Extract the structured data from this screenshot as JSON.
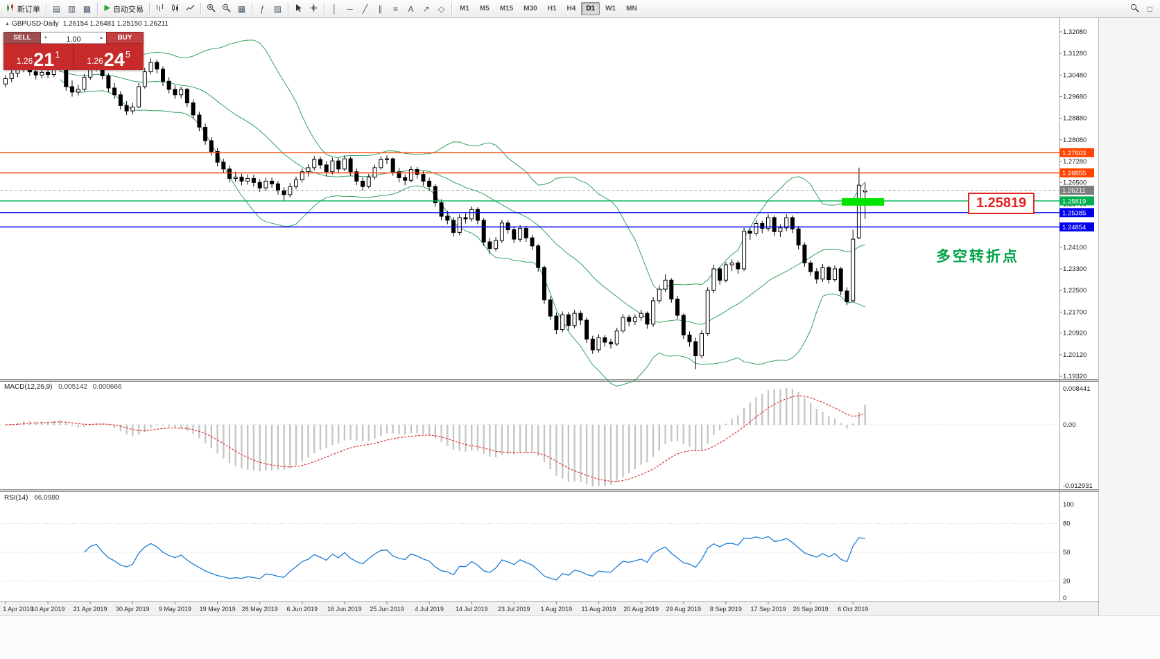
{
  "toolbar": {
    "new_order_label": "新订单",
    "autotrading_label": "自动交易",
    "left_tools": [
      {
        "name": "market-watch-icon",
        "glyph": "▤"
      },
      {
        "name": "navigator-icon",
        "glyph": "▥"
      },
      {
        "name": "terminal-icon",
        "glyph": "▩"
      }
    ],
    "tools": [
      {
        "type": "svg",
        "name": "bar-chart-icon",
        "icon": "bars"
      },
      {
        "type": "svg",
        "name": "candlestick-chart-icon",
        "icon": "candle"
      },
      {
        "type": "svg",
        "name": "line-chart-icon",
        "icon": "linechart"
      },
      {
        "type": "sep"
      },
      {
        "type": "svg",
        "name": "zoom-in-icon",
        "icon": "zoomin"
      },
      {
        "type": "svg",
        "name": "zoom-out-icon",
        "icon": "zoomout"
      },
      {
        "type": "glyph",
        "name": "tile-windows-icon",
        "glyph": "▦"
      },
      {
        "type": "sep"
      },
      {
        "type": "glyph",
        "name": "indicators-icon",
        "glyph": "ƒ"
      },
      {
        "type": "glyph",
        "name": "templates-icon",
        "glyph": "▨"
      },
      {
        "type": "sep"
      },
      {
        "type": "svg",
        "name": "cursor-icon",
        "icon": "cursor"
      },
      {
        "type": "svg",
        "name": "crosshair-icon",
        "icon": "crosshair"
      },
      {
        "type": "sep"
      },
      {
        "type": "glyph",
        "name": "vertical-line-icon",
        "glyph": "│"
      },
      {
        "type": "glyph",
        "name": "horizontal-line-icon",
        "glyph": "─"
      },
      {
        "type": "glyph",
        "name": "trendline-icon",
        "glyph": "╱"
      },
      {
        "type": "glyph",
        "name": "equidistant-channel-icon",
        "glyph": "∥"
      },
      {
        "type": "glyph",
        "name": "fibonacci-icon",
        "glyph": "≡"
      },
      {
        "type": "glyph",
        "name": "text-tool-icon",
        "glyph": "A"
      },
      {
        "type": "glyph",
        "name": "arrows-tool-icon",
        "glyph": "↗"
      },
      {
        "type": "glyph",
        "name": "shapes-tool-icon",
        "glyph": "◇"
      }
    ],
    "timeframes": {
      "items": [
        "M1",
        "M5",
        "M15",
        "M30",
        "H1",
        "H4",
        "D1",
        "W1",
        "MN"
      ],
      "active": "D1"
    },
    "right_tools": [
      {
        "type": "svg",
        "name": "search-icon",
        "icon": "search"
      },
      {
        "type": "glyph",
        "name": "window-list-icon",
        "glyph": "□"
      }
    ]
  },
  "trade_panel": {
    "sell_label": "SELL",
    "buy_label": "BUY",
    "volume": "1.00",
    "sell_price": {
      "base": "1.26",
      "big": "21",
      "sup": "1"
    },
    "buy_price": {
      "base": "1.26",
      "big": "24",
      "sup": "5"
    }
  },
  "chart_header": {
    "collapse_glyph": "▲",
    "symbol": "GBPUSD-Daily",
    "ohlc": "1.26154 1.26481 1.25150 1.26211"
  },
  "indicators": {
    "macd": {
      "label": "MACD(12,26,9)",
      "main_value": "0.005142",
      "signal_value": "0.000666",
      "scale": {
        "top": "0.008441",
        "zero": "0.00",
        "bottom": "-0.012931"
      }
    },
    "rsi": {
      "label": "RSI(14)",
      "value": "66.0980",
      "scale": [
        {
          "v": 100,
          "t": "100"
        },
        {
          "v": 80,
          "t": "80"
        },
        {
          "v": 50,
          "t": "50"
        },
        {
          "v": 20,
          "t": "20"
        },
        {
          "v": 0,
          "t": "0"
        }
      ],
      "level_lines": [
        20,
        50,
        80
      ]
    }
  },
  "chart_data": {
    "type": "candlestick",
    "symbol": "GBPUSD",
    "period": "Daily",
    "ohlc_current": {
      "open": 1.26154,
      "high": 1.26481,
      "low": 1.2515,
      "close": 1.26211
    },
    "price_scale": [
      {
        "v": 1.3208,
        "t": "1.32080"
      },
      {
        "v": 1.3128,
        "t": "1.31280"
      },
      {
        "v": 1.3048,
        "t": "1.30480"
      },
      {
        "v": 1.2968,
        "t": "1.29680"
      },
      {
        "v": 1.2888,
        "t": "1.28880"
      },
      {
        "v": 1.2808,
        "t": "1.28080"
      },
      {
        "v": 1.2728,
        "t": "1.27280"
      },
      {
        "v": 1.265,
        "t": "1.26500"
      },
      {
        "v": 1.257,
        "t": "1.25700"
      },
      {
        "v": 1.249,
        "t": "1.24900"
      },
      {
        "v": 1.241,
        "t": "1.24100"
      },
      {
        "v": 1.233,
        "t": "1.23300"
      },
      {
        "v": 1.225,
        "t": "1.22500"
      },
      {
        "v": 1.217,
        "t": "1.21700"
      },
      {
        "v": 1.2092,
        "t": "1.20920"
      },
      {
        "v": 1.2012,
        "t": "1.20120"
      },
      {
        "v": 1.1932,
        "t": "1.19320"
      }
    ],
    "x_axis": {
      "labels": [
        "1 Apr 2019",
        "10 Apr 2019",
        "21 Apr 2019",
        "30 Apr 2019",
        "9 May 2019",
        "19 May 2019",
        "28 May 2019",
        "6 Jun 2019",
        "16 Jun 2019",
        "25 Jun 2019",
        "4 Jul 2019",
        "14 Jul 2019",
        "23 Jul 2019",
        "1 Aug 2019",
        "11 Aug 2019",
        "20 Aug 2019",
        "29 Aug 2019",
        "8 Sep 2019",
        "17 Sep 2019",
        "26 Sep 2019",
        "6 Oct 2019"
      ],
      "candles_per_label": 7
    },
    "hlines": [
      {
        "price": 1.27603,
        "label": "1.27603",
        "color": "#ff4500"
      },
      {
        "price": 1.26855,
        "label": "1.26855",
        "color": "#ff4500"
      },
      {
        "price": 1.25819,
        "label": "1.25819",
        "color": "#00b050"
      },
      {
        "price": 1.25385,
        "label": "1.25385",
        "color": "#0000ee"
      },
      {
        "price": 1.24854,
        "label": "1.24854",
        "color": "#0000ee"
      }
    ],
    "current_price": {
      "value": 1.26211,
      "label": "1.26211",
      "color": "#7d7d7d"
    },
    "bollinger": {
      "period": 20,
      "deviation": 2,
      "color": "#33a05f"
    },
    "macd_settings": {
      "fast": 12,
      "slow": 26,
      "signal": 9
    },
    "rsi_settings": {
      "period": 14
    },
    "annotations": {
      "highlight_rect": {
        "i0": 138.5,
        "i1": 144.8,
        "p0": 1.2564,
        "p1": 1.2592,
        "color": "#00e400"
      },
      "callout": {
        "text": "1.25819",
        "color": "#e32222"
      },
      "note": {
        "text": "多空转折点",
        "color": "#00a146"
      }
    },
    "candles": [
      [
        1.3015,
        1.3048,
        1.3002,
        1.3035
      ],
      [
        1.3035,
        1.3068,
        1.3022,
        1.3055
      ],
      [
        1.3055,
        1.3082,
        1.304,
        1.307
      ],
      [
        1.307,
        1.3095,
        1.3058,
        1.3082
      ],
      [
        1.3082,
        1.309,
        1.3045,
        1.306
      ],
      [
        1.306,
        1.3072,
        1.3032,
        1.3048
      ],
      [
        1.3048,
        1.307,
        1.3035,
        1.3058
      ],
      [
        1.3058,
        1.3072,
        1.3038,
        1.305
      ],
      [
        1.305,
        1.3098,
        1.304,
        1.3085
      ],
      [
        1.3085,
        1.3102,
        1.306,
        1.3075
      ],
      [
        1.3075,
        1.308,
        1.299,
        1.3005
      ],
      [
        1.3005,
        1.3028,
        1.2968,
        1.2985
      ],
      [
        1.2985,
        1.3012,
        1.2972,
        1.2995
      ],
      [
        1.2995,
        1.3052,
        1.2988,
        1.304
      ],
      [
        1.304,
        1.3088,
        1.303,
        1.3075
      ],
      [
        1.3075,
        1.3102,
        1.3062,
        1.309
      ],
      [
        1.309,
        1.3098,
        1.3032,
        1.3045
      ],
      [
        1.3045,
        1.3055,
        1.2985,
        1.3
      ],
      [
        1.3,
        1.3018,
        1.296,
        1.2975
      ],
      [
        1.2975,
        1.2988,
        1.292,
        1.2935
      ],
      [
        1.2935,
        1.2952,
        1.29,
        1.2915
      ],
      [
        1.2915,
        1.2945,
        1.2902,
        1.293
      ],
      [
        1.293,
        1.3018,
        1.2925,
        1.3005
      ],
      [
        1.3005,
        1.3075,
        1.2998,
        1.306
      ],
      [
        1.306,
        1.311,
        1.305,
        1.3095
      ],
      [
        1.3095,
        1.3105,
        1.3055,
        1.307
      ],
      [
        1.307,
        1.308,
        1.3008,
        1.3025
      ],
      [
        1.3025,
        1.304,
        1.298,
        1.2995
      ],
      [
        1.2995,
        1.301,
        1.296,
        1.2975
      ],
      [
        1.2975,
        1.3005,
        1.2962,
        1.2995
      ],
      [
        1.2995,
        1.3,
        1.293,
        1.2945
      ],
      [
        1.2945,
        1.2958,
        1.2885,
        1.29
      ],
      [
        1.29,
        1.2912,
        1.284,
        1.2855
      ],
      [
        1.2855,
        1.2868,
        1.279,
        1.2805
      ],
      [
        1.2805,
        1.2818,
        1.275,
        1.2765
      ],
      [
        1.2765,
        1.2778,
        1.271,
        1.2725
      ],
      [
        1.2725,
        1.2738,
        1.2685,
        1.27
      ],
      [
        1.27,
        1.2712,
        1.265,
        1.2665
      ],
      [
        1.2665,
        1.269,
        1.2652,
        1.267
      ],
      [
        1.267,
        1.2682,
        1.264,
        1.2655
      ],
      [
        1.2655,
        1.268,
        1.2642,
        1.2665
      ],
      [
        1.2665,
        1.2678,
        1.2635,
        1.265
      ],
      [
        1.265,
        1.2662,
        1.2615,
        1.263
      ],
      [
        1.263,
        1.2668,
        1.2618,
        1.2655
      ],
      [
        1.2655,
        1.2668,
        1.263,
        1.2645
      ],
      [
        1.2645,
        1.2655,
        1.2605,
        1.262
      ],
      [
        1.262,
        1.2632,
        1.258,
        1.2605
      ],
      [
        1.2605,
        1.2648,
        1.2595,
        1.2635
      ],
      [
        1.2635,
        1.2672,
        1.2625,
        1.266
      ],
      [
        1.266,
        1.2702,
        1.265,
        1.269
      ],
      [
        1.269,
        1.2718,
        1.2672,
        1.2705
      ],
      [
        1.2705,
        1.2748,
        1.2695,
        1.2735
      ],
      [
        1.2735,
        1.2745,
        1.27,
        1.2715
      ],
      [
        1.2715,
        1.2728,
        1.2672,
        1.269
      ],
      [
        1.269,
        1.2742,
        1.268,
        1.273
      ],
      [
        1.273,
        1.274,
        1.2685,
        1.27
      ],
      [
        1.27,
        1.275,
        1.2692,
        1.2738
      ],
      [
        1.2738,
        1.2745,
        1.2675,
        1.269
      ],
      [
        1.269,
        1.2702,
        1.264,
        1.2655
      ],
      [
        1.2655,
        1.2668,
        1.262,
        1.2635
      ],
      [
        1.2635,
        1.2682,
        1.2628,
        1.267
      ],
      [
        1.267,
        1.2716,
        1.2662,
        1.2705
      ],
      [
        1.2705,
        1.2747,
        1.2698,
        1.2735
      ],
      [
        1.2735,
        1.275,
        1.2718,
        1.2738
      ],
      [
        1.2738,
        1.2742,
        1.2675,
        1.269
      ],
      [
        1.269,
        1.2705,
        1.265,
        1.2668
      ],
      [
        1.2668,
        1.268,
        1.264,
        1.2658
      ],
      [
        1.2658,
        1.271,
        1.265,
        1.2698
      ],
      [
        1.2698,
        1.2708,
        1.2665,
        1.268
      ],
      [
        1.268,
        1.2692,
        1.2638,
        1.2655
      ],
      [
        1.2655,
        1.2668,
        1.2618,
        1.2635
      ],
      [
        1.2635,
        1.2645,
        1.256,
        1.2575
      ],
      [
        1.2575,
        1.2588,
        1.251,
        1.2525
      ],
      [
        1.2525,
        1.2545,
        1.2495,
        1.251
      ],
      [
        1.251,
        1.2522,
        1.245,
        1.2465
      ],
      [
        1.2465,
        1.2532,
        1.2455,
        1.252
      ],
      [
        1.252,
        1.2535,
        1.2498,
        1.2515
      ],
      [
        1.2515,
        1.2562,
        1.2505,
        1.255
      ],
      [
        1.255,
        1.2558,
        1.2495,
        1.251
      ],
      [
        1.251,
        1.2518,
        1.2415,
        1.243
      ],
      [
        1.243,
        1.2445,
        1.2385,
        1.2405
      ],
      [
        1.2405,
        1.2448,
        1.2395,
        1.2435
      ],
      [
        1.2435,
        1.2512,
        1.2425,
        1.25
      ],
      [
        1.25,
        1.251,
        1.246,
        1.2475
      ],
      [
        1.2475,
        1.2488,
        1.2425,
        1.244
      ],
      [
        1.244,
        1.2492,
        1.243,
        1.248
      ],
      [
        1.248,
        1.249,
        1.243,
        1.2445
      ],
      [
        1.2445,
        1.2455,
        1.24,
        1.2415
      ],
      [
        1.2415,
        1.2422,
        1.232,
        1.2335
      ],
      [
        1.2335,
        1.2342,
        1.22,
        1.2215
      ],
      [
        1.2215,
        1.2228,
        1.214,
        1.2155
      ],
      [
        1.2155,
        1.2168,
        1.2088,
        1.2105
      ],
      [
        1.2105,
        1.2172,
        1.2095,
        1.216
      ],
      [
        1.216,
        1.217,
        1.2102,
        1.212
      ],
      [
        1.212,
        1.2178,
        1.211,
        1.2165
      ],
      [
        1.2165,
        1.2175,
        1.2122,
        1.214
      ],
      [
        1.214,
        1.215,
        1.2055,
        1.207
      ],
      [
        1.207,
        1.2082,
        1.2015,
        1.203
      ],
      [
        1.203,
        1.2088,
        1.202,
        1.2075
      ],
      [
        1.2075,
        1.2085,
        1.2042,
        1.2058
      ],
      [
        1.2058,
        1.207,
        1.2035,
        1.2052
      ],
      [
        1.2052,
        1.2112,
        1.2045,
        1.21
      ],
      [
        1.21,
        1.2162,
        1.2092,
        1.215
      ],
      [
        1.215,
        1.216,
        1.2118,
        1.2135
      ],
      [
        1.2135,
        1.2162,
        1.2122,
        1.215
      ],
      [
        1.215,
        1.2178,
        1.2138,
        1.2165
      ],
      [
        1.2165,
        1.2172,
        1.2108,
        1.2125
      ],
      [
        1.2125,
        1.2225,
        1.2115,
        1.2212
      ],
      [
        1.2212,
        1.2268,
        1.2202,
        1.2255
      ],
      [
        1.2255,
        1.231,
        1.2245,
        1.2288
      ],
      [
        1.2288,
        1.2295,
        1.2205,
        1.2218
      ],
      [
        1.2218,
        1.223,
        1.2145,
        1.2158
      ],
      [
        1.2158,
        1.2165,
        1.207,
        1.2085
      ],
      [
        1.2085,
        1.2098,
        1.2042,
        1.206
      ],
      [
        1.206,
        1.2075,
        1.1958,
        1.2008
      ],
      [
        1.2008,
        1.2102,
        1.1998,
        1.209
      ],
      [
        1.209,
        1.2262,
        1.2082,
        1.225
      ],
      [
        1.225,
        1.2345,
        1.224,
        1.233
      ],
      [
        1.233,
        1.2338,
        1.2272,
        1.2288
      ],
      [
        1.2288,
        1.2355,
        1.228,
        1.2345
      ],
      [
        1.2345,
        1.2365,
        1.2322,
        1.2352
      ],
      [
        1.2352,
        1.236,
        1.2312,
        1.233
      ],
      [
        1.233,
        1.2482,
        1.2322,
        1.247
      ],
      [
        1.247,
        1.248,
        1.2438,
        1.2462
      ],
      [
        1.2462,
        1.2512,
        1.2452,
        1.2498
      ],
      [
        1.2498,
        1.2508,
        1.2462,
        1.248
      ],
      [
        1.248,
        1.2532,
        1.247,
        1.252
      ],
      [
        1.252,
        1.2528,
        1.2452,
        1.2468
      ],
      [
        1.2468,
        1.2495,
        1.2448,
        1.2482
      ],
      [
        1.2482,
        1.2532,
        1.247,
        1.252
      ],
      [
        1.252,
        1.2528,
        1.2462,
        1.2478
      ],
      [
        1.2478,
        1.2488,
        1.2402,
        1.2418
      ],
      [
        1.2418,
        1.2428,
        1.2338,
        1.2352
      ],
      [
        1.2352,
        1.2362,
        1.2305,
        1.232
      ],
      [
        1.232,
        1.2332,
        1.2275,
        1.2292
      ],
      [
        1.2292,
        1.2348,
        1.2282,
        1.2335
      ],
      [
        1.2335,
        1.2342,
        1.2275,
        1.229
      ],
      [
        1.229,
        1.2342,
        1.2282,
        1.233
      ],
      [
        1.233,
        1.2338,
        1.2232,
        1.2248
      ],
      [
        1.2248,
        1.2262,
        1.2195,
        1.2208
      ],
      [
        1.2212,
        1.2475,
        1.2205,
        1.244
      ],
      [
        1.2445,
        1.2705,
        1.244,
        1.264
      ],
      [
        1.26154,
        1.26481,
        1.2515,
        1.26211
      ]
    ]
  }
}
